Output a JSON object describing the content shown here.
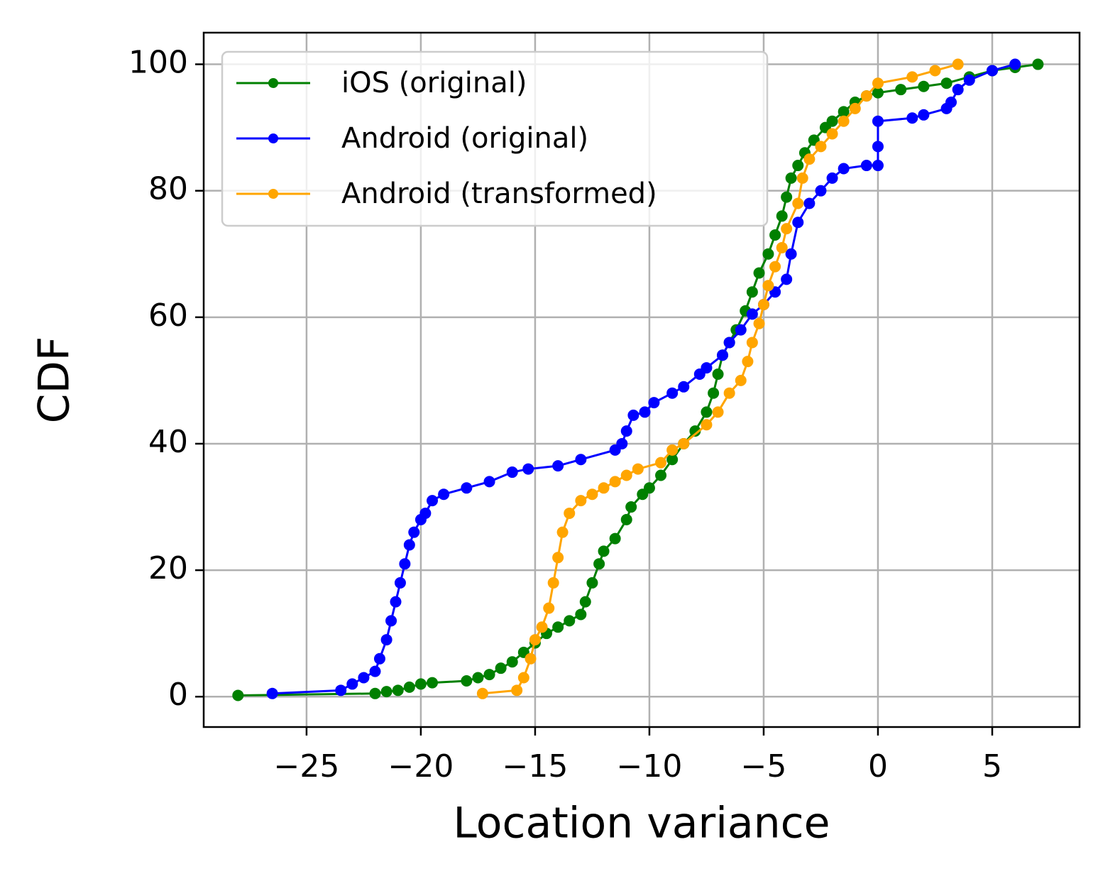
{
  "chart_data": {
    "type": "line",
    "x_label": "Location variance",
    "y_label": "CDF",
    "xlim": [
      -29.5,
      8.82
    ],
    "ylim": [
      -4.8,
      105
    ],
    "xticks": [
      {
        "value": -25,
        "label": "−25"
      },
      {
        "value": -20,
        "label": "−20"
      },
      {
        "value": -15,
        "label": "−15"
      },
      {
        "value": -10,
        "label": "−10"
      },
      {
        "value": -5,
        "label": "−5"
      },
      0,
      5
    ],
    "yticks": [
      0,
      20,
      40,
      60,
      80,
      100
    ],
    "grid": true,
    "legend": "upper left",
    "series": [
      {
        "name": "iOS (original)",
        "color": "green",
        "x": [
          -28,
          -22,
          -21.5,
          -21,
          -20.5,
          -20,
          -19.5,
          -18,
          -17.5,
          -17,
          -16.5,
          -16,
          -15.5,
          -15,
          -14.5,
          -14,
          -13.5,
          -13,
          -12.8,
          -12.5,
          -12.2,
          -12,
          -11.5,
          -11,
          -10.8,
          -10.3,
          -10,
          -9.5,
          -9,
          -8.5,
          -8,
          -7.5,
          -7.2,
          -7,
          -6.8,
          -6.5,
          -6.2,
          -5.8,
          -5.5,
          -5.2,
          -4.8,
          -4.5,
          -4.2,
          -4,
          -3.8,
          -3.5,
          -3.2,
          -2.8,
          -2.3,
          -2,
          -1.5,
          -1,
          -0.5,
          0,
          1,
          2,
          3,
          4,
          5,
          6,
          7
        ],
        "values": [
          0.2,
          0.5,
          0.8,
          1,
          1.5,
          2,
          2.2,
          2.5,
          3,
          3.5,
          4.5,
          5.5,
          7,
          8.5,
          10,
          11,
          12,
          13,
          15,
          18,
          21,
          23,
          25,
          28,
          30,
          32,
          33,
          35,
          37.5,
          40,
          42,
          45,
          48,
          51,
          54,
          56,
          58,
          61,
          64,
          67,
          70,
          73,
          76,
          79,
          82,
          84,
          86,
          88,
          90,
          91,
          92.5,
          94,
          95,
          95.5,
          96,
          96.5,
          97,
          98,
          99,
          99.5,
          100
        ]
      },
      {
        "name": "Android (original)",
        "color": "blue",
        "x": [
          -26.5,
          -23.5,
          -23,
          -22.5,
          -22,
          -21.8,
          -21.5,
          -21.3,
          -21.1,
          -20.9,
          -20.7,
          -20.5,
          -20.3,
          -20,
          -19.8,
          -19.5,
          -19,
          -18,
          -17,
          -16,
          -15.3,
          -14,
          -13,
          -11.5,
          -11.2,
          -11,
          -10.7,
          -10.2,
          -9.8,
          -9,
          -8.5,
          -7.8,
          -7.5,
          -6.8,
          -6.5,
          -6,
          -5.5,
          -5,
          -4.5,
          -4,
          -3.8,
          -3.5,
          -3,
          -2.5,
          -2,
          -1.5,
          -0.5,
          0,
          0,
          0,
          1.5,
          2,
          3,
          3.2,
          3.5,
          4,
          5,
          6
        ],
        "values": [
          0.5,
          1,
          2,
          3,
          4,
          6,
          9,
          12,
          15,
          18,
          21,
          24,
          26,
          28,
          29,
          31,
          32,
          33,
          34,
          35.5,
          36,
          36.5,
          37.5,
          39,
          40,
          42,
          44.5,
          45,
          46.5,
          48,
          49,
          51,
          52,
          54,
          56,
          58,
          60.5,
          62,
          64,
          66,
          70,
          75,
          78,
          80,
          82,
          83.5,
          84,
          84,
          87,
          91,
          91.5,
          92,
          93,
          94,
          96,
          97.5,
          99,
          100
        ]
      },
      {
        "name": "Android (transformed)",
        "color": "orange",
        "x": [
          -17.3,
          -15.8,
          -15.5,
          -15.2,
          -15,
          -14.7,
          -14.4,
          -14.2,
          -14,
          -13.8,
          -13.5,
          -13,
          -12.5,
          -12,
          -11.5,
          -11,
          -10.5,
          -9.5,
          -9,
          -8.5,
          -7.5,
          -7,
          -6.5,
          -6,
          -5.7,
          -5.5,
          -5.2,
          -5,
          -4.8,
          -4.5,
          -4.2,
          -4,
          -3.5,
          -3.3,
          -3,
          -2.5,
          -2,
          -1.5,
          -1,
          -0.5,
          0,
          1.5,
          2.5,
          3.5
        ],
        "values": [
          0.5,
          1,
          3,
          6,
          9,
          11,
          14,
          18,
          22,
          26,
          29,
          31,
          32,
          33,
          34,
          35,
          36,
          37,
          39,
          40,
          43,
          45,
          48,
          50,
          53,
          56,
          59,
          62,
          65,
          68,
          71,
          74,
          78,
          82,
          85,
          87,
          89,
          91,
          93,
          95,
          97,
          98,
          99,
          100
        ]
      }
    ]
  }
}
